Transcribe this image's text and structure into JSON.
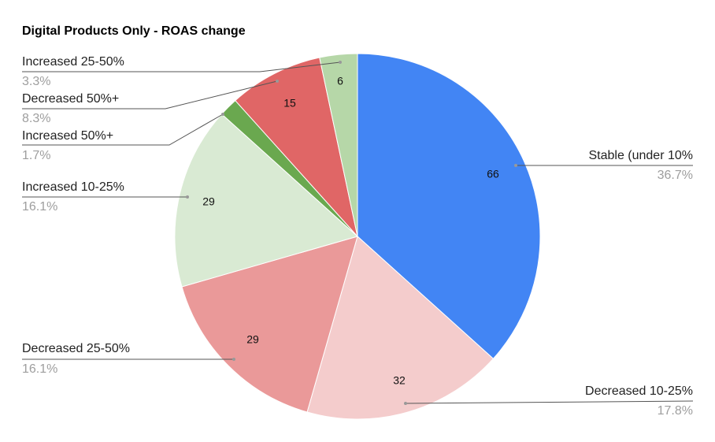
{
  "chart_data": {
    "type": "pie",
    "title": "Digital Products Only - ROAS change",
    "categories": [
      "Stable (under 10%",
      "Decreased 10-25%",
      "Decreased 25-50%",
      "Increased 10-25%",
      "Increased 50%+",
      "Decreased 50%+",
      "Increased 25-50%"
    ],
    "values": [
      66,
      32,
      29,
      29,
      3,
      15,
      6
    ],
    "percent_labels": [
      "36.7%",
      "17.8%",
      "16.1%",
      "16.1%",
      "1.7%",
      "8.3%",
      "3.3%"
    ],
    "colors": [
      "#4285f4",
      "#f4cccc",
      "#ea9999",
      "#d9ead3",
      "#6aa84f",
      "#e06666",
      "#b6d7a8"
    ]
  }
}
